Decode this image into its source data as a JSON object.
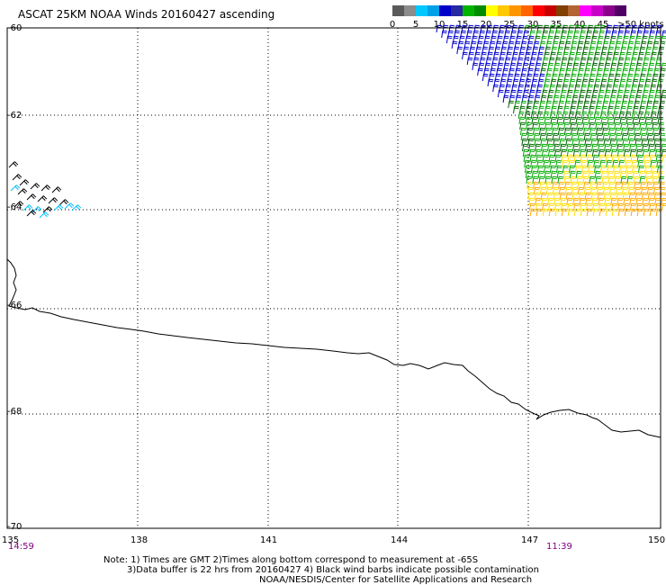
{
  "title": "ASCAT 25KM NOAA Winds 20160427 ascending",
  "colorbar": {
    "labels": [
      "0",
      "5",
      "10",
      "15",
      "20",
      "25",
      "30",
      "35",
      "40",
      "45",
      ">50 knots"
    ],
    "colors": [
      "#5a5a5a",
      "#8c8c8c",
      "#00c8ff",
      "#00a0e8",
      "#0000c8",
      "#2828a0",
      "#00b400",
      "#008c00",
      "#ffff00",
      "#ffc800",
      "#ff9600",
      "#ff6400",
      "#ff0000",
      "#c80000",
      "#804000",
      "#b46432",
      "#ff00ff",
      "#c800c8",
      "#8c008c",
      "#500064"
    ]
  },
  "map": {
    "lat_ticks": [
      "-60",
      "-62",
      "-64",
      "-66",
      "-68",
      "-70"
    ],
    "lon_ticks": [
      "135",
      "138",
      "141",
      "144",
      "147",
      "150"
    ],
    "times": {
      "left": "14:59",
      "right": "11:39"
    },
    "barb_colors": {
      "light": "#00bfff",
      "low": "#0000cc",
      "mid": "#00aa00",
      "midDark": "#006600",
      "high": "#ffe000",
      "higher": "#ffaa00",
      "contaminated": "#000000"
    },
    "coastline_color": "#000000"
  },
  "notes": [
    "Note: 1) Times are GMT 2)Times along bottom correspond to measurement at -65S",
    "3)Data buffer is 22 hrs from 20160427 4) Black wind barbs indicate possible contamination",
    "NOAA/NESDIS/Center for Satellite Applications and Research"
  ]
}
